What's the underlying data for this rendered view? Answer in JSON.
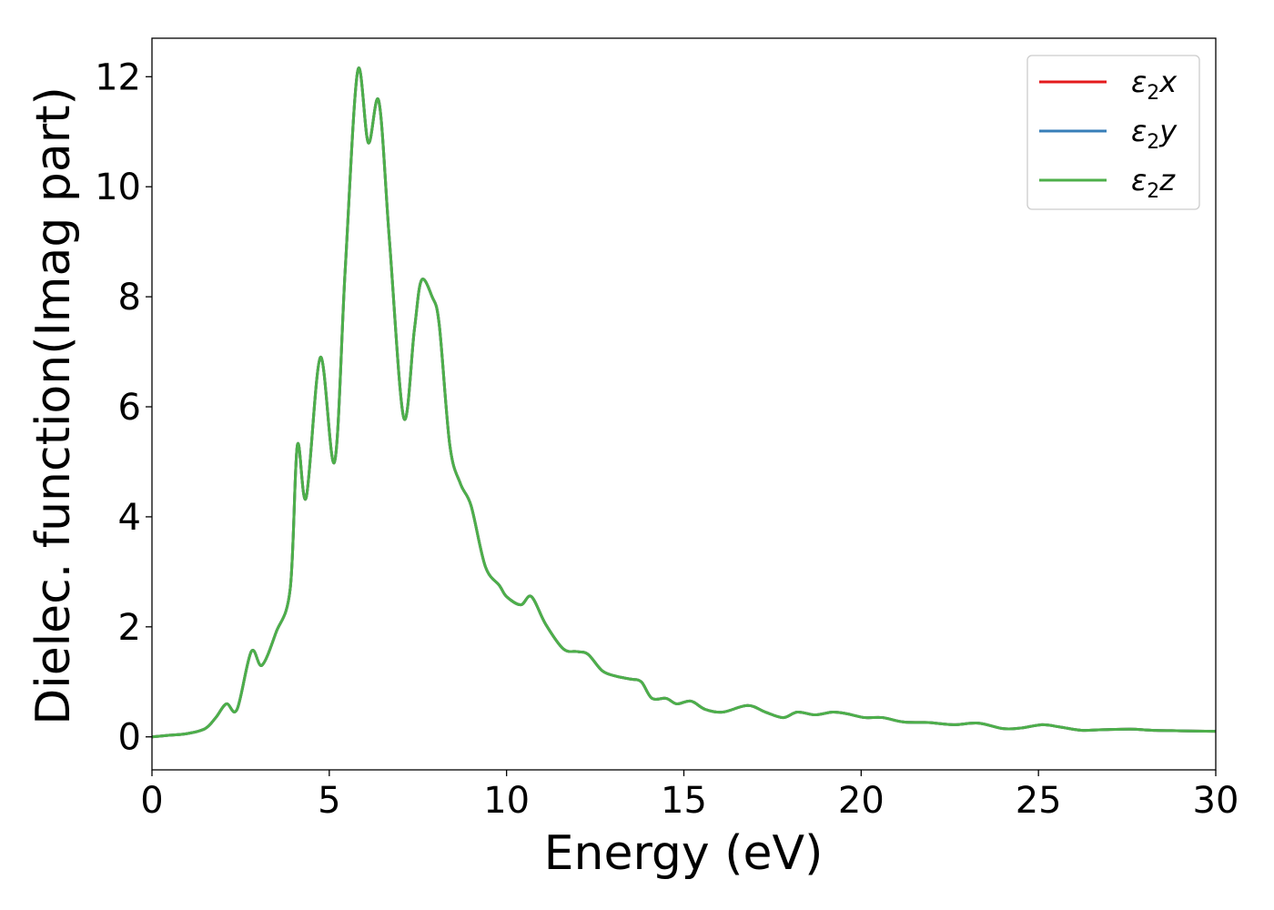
{
  "chart_data": {
    "type": "line",
    "xlabel": "Energy (eV)",
    "ylabel": "Dielec. function(Imag part)",
    "xlim": [
      0,
      30
    ],
    "ylim": [
      -0.6,
      12.7
    ],
    "x_ticks": [
      0,
      5,
      10,
      15,
      20,
      25,
      30
    ],
    "y_ticks": [
      0,
      2,
      4,
      6,
      8,
      10,
      12
    ],
    "grid": false,
    "legend_position": "top-right",
    "series": [
      {
        "name": "ε₂x",
        "legend_main": "ε",
        "legend_sub": "2",
        "legend_suffix": "x",
        "color": "#e41a1c",
        "visible": false
      },
      {
        "name": "ε₂y",
        "legend_main": "ε",
        "legend_sub": "2",
        "legend_suffix": "y",
        "color": "#377eb8",
        "visible": false
      },
      {
        "name": "ε₂z",
        "legend_main": "ε",
        "legend_sub": "2",
        "legend_suffix": "z",
        "color": "#4daf4a",
        "visible": true
      }
    ],
    "x": [
      0,
      0.5,
      1.0,
      1.5,
      1.8,
      2.1,
      2.4,
      2.8,
      3.1,
      3.5,
      3.9,
      4.1,
      4.35,
      4.75,
      5.15,
      5.45,
      5.8,
      6.1,
      6.4,
      6.7,
      7.1,
      7.4,
      7.6,
      7.9,
      8.1,
      8.4,
      8.7,
      9.0,
      9.4,
      9.8,
      10.0,
      10.4,
      10.7,
      11.1,
      11.6,
      12.0,
      12.3,
      12.7,
      13.1,
      13.5,
      13.8,
      14.1,
      14.5,
      14.8,
      15.2,
      15.6,
      16.1,
      16.8,
      17.3,
      17.8,
      18.2,
      18.7,
      19.2,
      19.6,
      20.1,
      20.6,
      21.2,
      21.9,
      22.6,
      23.3,
      24.0,
      24.5,
      25.1,
      25.6,
      26.2,
      26.8,
      27.6,
      28.2,
      29.0,
      30.0
    ],
    "y": [
      0.0,
      0.03,
      0.06,
      0.15,
      0.35,
      0.6,
      0.5,
      1.55,
      1.3,
      1.9,
      2.7,
      5.3,
      4.35,
      6.9,
      5.0,
      8.5,
      12.1,
      10.8,
      11.55,
      9.0,
      5.8,
      7.4,
      8.3,
      8.0,
      7.5,
      5.3,
      4.6,
      4.2,
      3.1,
      2.75,
      2.55,
      2.4,
      2.55,
      2.05,
      1.6,
      1.55,
      1.5,
      1.2,
      1.1,
      1.05,
      1.0,
      0.7,
      0.7,
      0.6,
      0.65,
      0.5,
      0.45,
      0.57,
      0.45,
      0.35,
      0.45,
      0.4,
      0.45,
      0.42,
      0.35,
      0.35,
      0.27,
      0.26,
      0.22,
      0.25,
      0.15,
      0.16,
      0.22,
      0.18,
      0.12,
      0.13,
      0.14,
      0.12,
      0.11,
      0.1
    ]
  }
}
